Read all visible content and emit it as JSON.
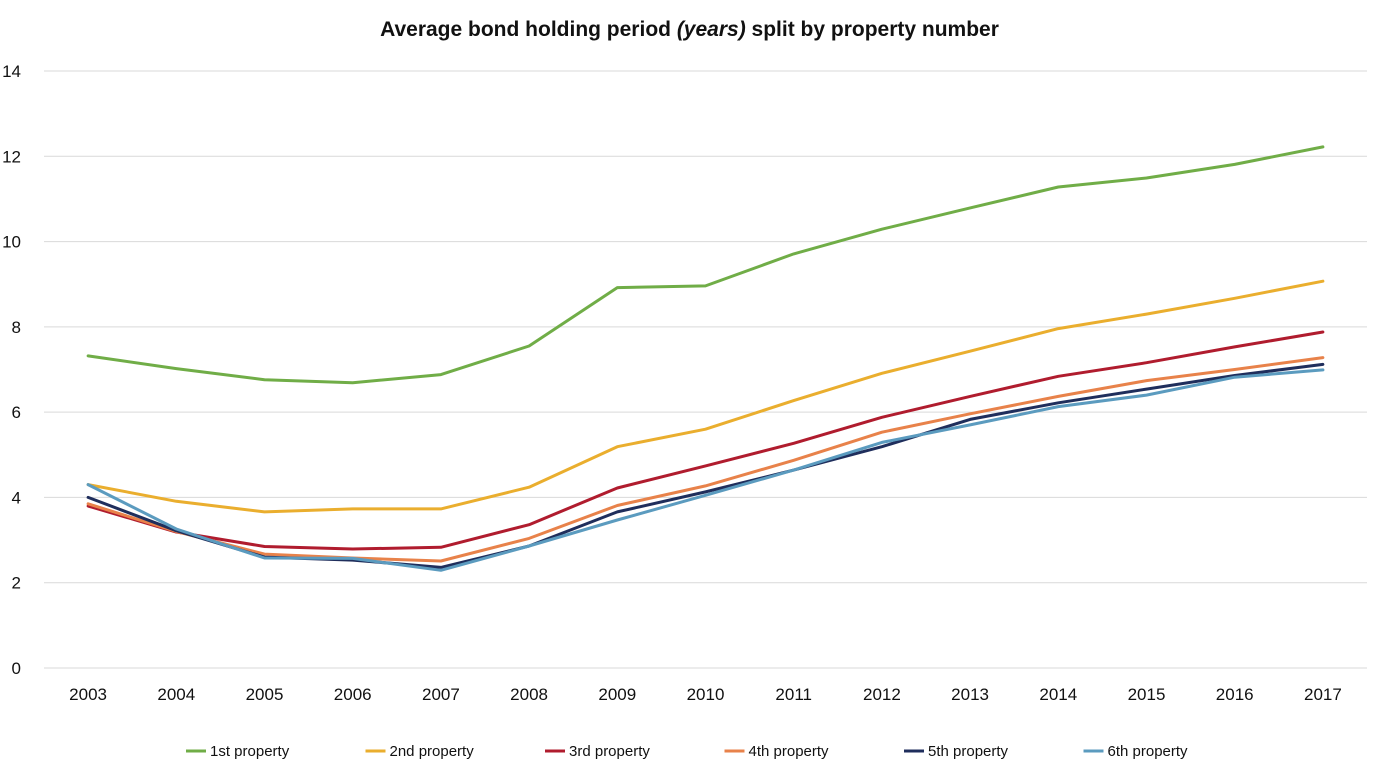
{
  "chart_data": {
    "type": "line",
    "title_parts": {
      "before": "Average bond holding period ",
      "emphasis": "(years)",
      "after": " split by property number"
    },
    "x": [
      "2003",
      "2004",
      "2005",
      "2006",
      "2007",
      "2008",
      "2009",
      "2010",
      "2011",
      "2012",
      "2013",
      "2014",
      "2015",
      "2016",
      "2017"
    ],
    "ylim": [
      0,
      14
    ],
    "yticks": [
      0,
      2,
      4,
      6,
      8,
      10,
      12,
      14
    ],
    "grid": true,
    "legend_position": "bottom",
    "series": [
      {
        "name": "1st property",
        "color": "#70AD47",
        "values": [
          7.32,
          7.02,
          6.76,
          6.69,
          6.88,
          7.55,
          8.92,
          8.96,
          9.71,
          10.29,
          10.79,
          11.28,
          11.49,
          11.81,
          12.22
        ]
      },
      {
        "name": "2nd property",
        "color": "#EAAE2E",
        "values": [
          4.3,
          3.91,
          3.66,
          3.73,
          3.73,
          4.24,
          5.19,
          5.6,
          6.27,
          6.91,
          7.43,
          7.96,
          8.3,
          8.67,
          9.07
        ]
      },
      {
        "name": "3rd property",
        "color": "#B01C2E",
        "values": [
          3.8,
          3.19,
          2.85,
          2.79,
          2.83,
          3.36,
          4.22,
          4.74,
          5.27,
          5.88,
          6.37,
          6.84,
          7.16,
          7.53,
          7.88
        ]
      },
      {
        "name": "4th property",
        "color": "#E8824A",
        "values": [
          3.85,
          3.2,
          2.67,
          2.58,
          2.51,
          3.04,
          3.81,
          4.27,
          4.87,
          5.53,
          5.96,
          6.37,
          6.74,
          7.0,
          7.28
        ]
      },
      {
        "name": "5th property",
        "color": "#1F2E5C",
        "values": [
          4.0,
          3.22,
          2.6,
          2.53,
          2.36,
          2.86,
          3.66,
          4.13,
          4.64,
          5.19,
          5.83,
          6.22,
          6.54,
          6.86,
          7.12
        ]
      },
      {
        "name": "6th property",
        "color": "#5B9BBF",
        "values": [
          4.3,
          3.26,
          2.58,
          2.57,
          2.29,
          2.86,
          3.47,
          4.05,
          4.64,
          5.29,
          5.7,
          6.13,
          6.4,
          6.82,
          6.99
        ]
      }
    ]
  }
}
